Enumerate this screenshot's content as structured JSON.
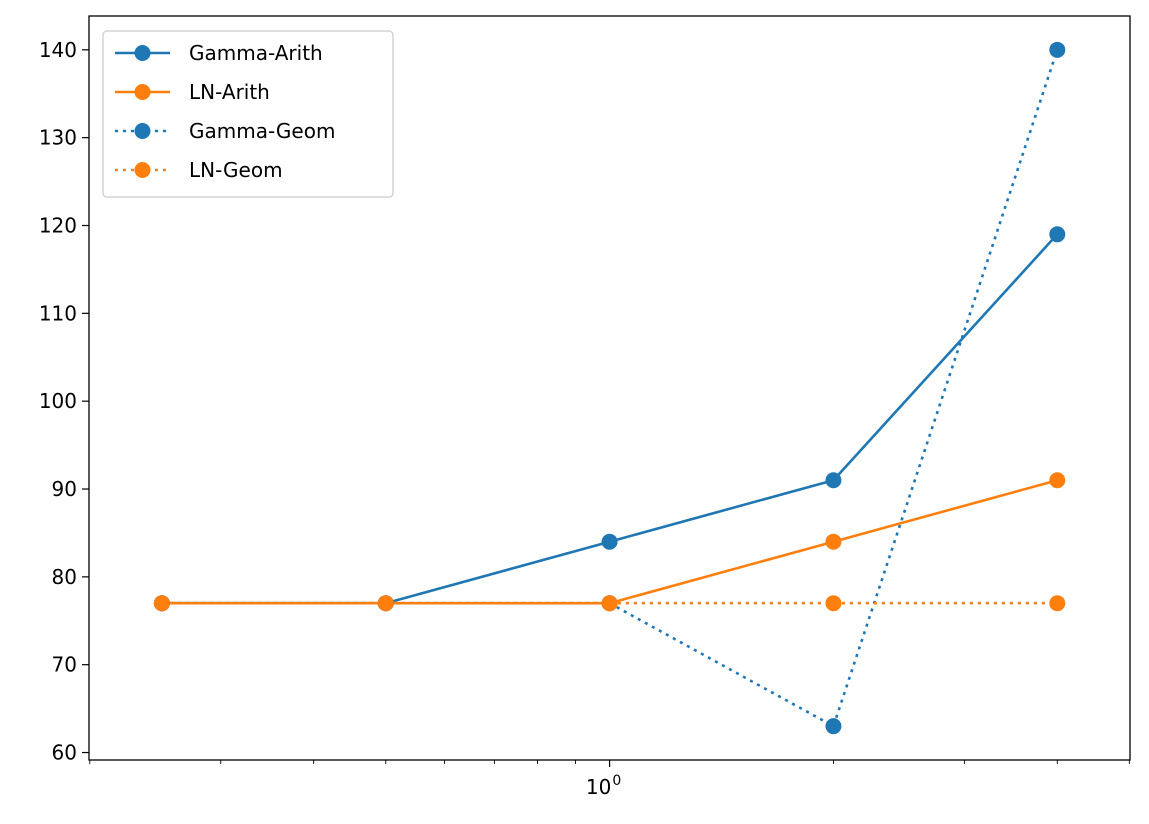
{
  "chart_data": {
    "type": "line",
    "title": "",
    "xlabel": "",
    "ylabel": "",
    "x_scale": "log",
    "x": [
      0.25,
      0.5,
      1,
      2,
      4
    ],
    "xlim": [
      0.1995,
      5.01
    ],
    "ylim": [
      59.15,
      143.85
    ],
    "y_ticks": [
      60,
      70,
      80,
      90,
      100,
      110,
      120,
      130,
      140
    ],
    "x_major_ticks": [
      {
        "value": 1,
        "base": "10",
        "exp": "0"
      }
    ],
    "x_minor_ticks": [
      0.2,
      0.3,
      0.4,
      0.5,
      0.6,
      0.7,
      0.8,
      0.9,
      2,
      3,
      4,
      5
    ],
    "grid": false,
    "legend_position": "top-left",
    "series": [
      {
        "name": "Gamma-Arith",
        "color": "#1f77b4",
        "linestyle": "solid",
        "marker": "circle",
        "values": [
          77,
          77,
          84,
          91,
          119
        ]
      },
      {
        "name": "LN-Arith",
        "color": "#ff7f0e",
        "linestyle": "solid",
        "marker": "circle",
        "values": [
          77,
          77,
          77,
          84,
          91
        ]
      },
      {
        "name": "Gamma-Geom",
        "color": "#1f77b4",
        "linestyle": "dotted",
        "marker": "circle",
        "values": [
          77,
          77,
          77,
          63,
          140
        ]
      },
      {
        "name": "LN-Geom",
        "color": "#ff7f0e",
        "linestyle": "dotted",
        "marker": "circle",
        "values": [
          77,
          77,
          77,
          77,
          77
        ]
      }
    ]
  }
}
